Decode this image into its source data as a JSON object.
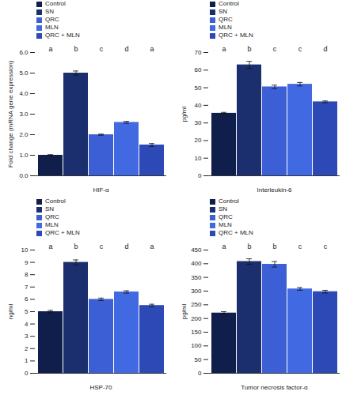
{
  "chart_data": [
    {
      "type": "bar",
      "x_label": "HIF-α",
      "y_label": "Fold change (mRNA gene expression)",
      "categories": [
        "Control",
        "SN",
        "QRC",
        "MLN",
        "QRC + MLN"
      ],
      "values": [
        1.0,
        5.0,
        2.0,
        2.6,
        1.5
      ],
      "errors": [
        0.03,
        0.1,
        0.03,
        0.05,
        0.07
      ],
      "annotations": [
        "a",
        "b",
        "c",
        "d",
        "a"
      ],
      "colors": [
        "#0f1e4a",
        "#1b2f6e",
        "#3d5fd6",
        "#4169e1",
        "#2d49b5"
      ],
      "ylim": [
        0,
        6
      ],
      "yticks": [
        0,
        1,
        2,
        3,
        4,
        5,
        6
      ],
      "grid": false,
      "legend": "top-left",
      "tick_labels": "y"
    },
    {
      "type": "bar",
      "x_label": "Interleukin-6",
      "y_label": "pg/ml",
      "categories": [
        "Control",
        "SN",
        "QRC",
        "MLN",
        "QRC + MLN"
      ],
      "values": [
        35.5,
        63,
        50.5,
        52,
        42
      ],
      "errors": [
        0.5,
        2,
        1,
        1,
        0.5
      ],
      "annotations": [
        "a",
        "b",
        "c",
        "c",
        "d"
      ],
      "colors": [
        "#0f1e4a",
        "#1b2f6e",
        "#3d5fd6",
        "#4169e1",
        "#2d49b5"
      ],
      "ylim": [
        0,
        70
      ],
      "yticks": [
        0,
        10,
        20,
        30,
        40,
        50,
        60,
        70
      ],
      "grid": false,
      "legend": "top-left",
      "tick_labels": "y"
    },
    {
      "type": "bar",
      "x_label": "HSP-70",
      "y_label": "ng/ml",
      "categories": [
        "Control",
        "SN",
        "QRC",
        "MLN",
        "QRC + MLN"
      ],
      "values": [
        5.0,
        9.0,
        6.0,
        6.6,
        5.5
      ],
      "errors": [
        0.1,
        0.2,
        0.1,
        0.1,
        0.1
      ],
      "annotations": [
        "a",
        "b",
        "c",
        "d",
        "a"
      ],
      "colors": [
        "#0f1e4a",
        "#1b2f6e",
        "#3d5fd6",
        "#4169e1",
        "#2d49b5"
      ],
      "ylim": [
        0,
        10
      ],
      "yticks": [
        0,
        1,
        2,
        3,
        4,
        5,
        6,
        7,
        8,
        9,
        10
      ],
      "grid": false,
      "legend": "top-left",
      "tick_labels": "y"
    },
    {
      "type": "bar",
      "x_label": "Tumor necrosis factor-α",
      "y_label": "pg/ml",
      "categories": [
        "Control",
        "SN",
        "QRC",
        "MLN",
        "QRC + MLN"
      ],
      "values": [
        220,
        408,
        398,
        308,
        298
      ],
      "errors": [
        5,
        10,
        10,
        5,
        5
      ],
      "annotations": [
        "a",
        "b",
        "b",
        "c",
        "c"
      ],
      "colors": [
        "#0f1e4a",
        "#1b2f6e",
        "#3d5fd6",
        "#4169e1",
        "#2d49b5"
      ],
      "ylim": [
        0,
        450
      ],
      "yticks": [
        0,
        50,
        100,
        150,
        200,
        250,
        300,
        350,
        400,
        450
      ],
      "grid": false,
      "legend": "top-left",
      "tick_labels": "y"
    }
  ]
}
